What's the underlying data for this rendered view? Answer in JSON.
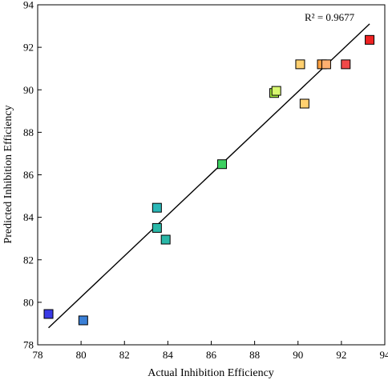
{
  "chart_data": {
    "type": "scatter",
    "title": "",
    "xlabel": "Actual Inhibition Efficiency",
    "ylabel": "Predicted Inhibition Efficiency",
    "xlim": [
      78,
      94
    ],
    "ylim": [
      78,
      94
    ],
    "xticks": [
      78,
      80,
      82,
      84,
      86,
      88,
      90,
      92,
      94
    ],
    "yticks": [
      78,
      80,
      82,
      84,
      86,
      88,
      90,
      92,
      94
    ],
    "grid": false,
    "legend": "none",
    "marker": "square",
    "points": [
      {
        "x": 78.5,
        "y": 79.45,
        "color": "#3a3ae6"
      },
      {
        "x": 80.1,
        "y": 79.15,
        "color": "#3a7fd6"
      },
      {
        "x": 83.5,
        "y": 84.45,
        "color": "#2ab8b8"
      },
      {
        "x": 83.5,
        "y": 83.5,
        "color": "#2ab8a8"
      },
      {
        "x": 83.9,
        "y": 82.95,
        "color": "#2ab8a8"
      },
      {
        "x": 86.5,
        "y": 86.5,
        "color": "#3cd060"
      },
      {
        "x": 88.9,
        "y": 89.85,
        "color": "#a8f040"
      },
      {
        "x": 89.0,
        "y": 89.95,
        "color": "#d8f870"
      },
      {
        "x": 90.1,
        "y": 91.2,
        "color": "#ffd070"
      },
      {
        "x": 90.3,
        "y": 89.35,
        "color": "#ffd070"
      },
      {
        "x": 91.1,
        "y": 91.2,
        "color": "#ffa040"
      },
      {
        "x": 91.3,
        "y": 91.2,
        "color": "#ffb070"
      },
      {
        "x": 92.2,
        "y": 91.2,
        "color": "#f04848"
      },
      {
        "x": 93.3,
        "y": 92.35,
        "color": "#ee2222"
      }
    ],
    "fit_line": {
      "x": [
        78.5,
        93.3
      ],
      "y": [
        78.8,
        93.1
      ]
    },
    "annotation": "R² = 0.9677"
  }
}
